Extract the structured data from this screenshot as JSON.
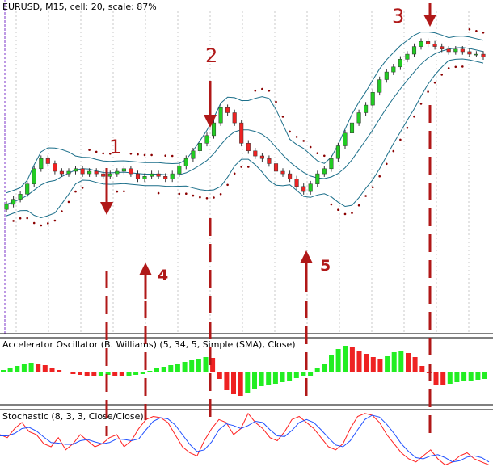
{
  "chart_data": {
    "type": "candlestick",
    "title": "EURUSD, M15, cell: 20, scale: 87%",
    "annotations": [
      {
        "label": "1",
        "kind": "down-arrow"
      },
      {
        "label": "2",
        "kind": "down-arrow"
      },
      {
        "label": "3",
        "kind": "down-arrow"
      },
      {
        "label": "4",
        "kind": "up-arrow"
      },
      {
        "label": "5",
        "kind": "up-arrow"
      }
    ],
    "panels": {
      "price": {
        "series": [
          {
            "name": "candles",
            "values": [
              0.34,
              0.36,
              0.38,
              0.42,
              0.48,
              0.52,
              0.5,
              0.47,
              0.46,
              0.47,
              0.48,
              0.46,
              0.47,
              0.46,
              0.45,
              0.46,
              0.47,
              0.48,
              0.46,
              0.44,
              0.45,
              0.46,
              0.45,
              0.44,
              0.46,
              0.49,
              0.52,
              0.55,
              0.58,
              0.61,
              0.66,
              0.72,
              0.7,
              0.66,
              0.58,
              0.55,
              0.53,
              0.52,
              0.5,
              0.47,
              0.46,
              0.44,
              0.41,
              0.39,
              0.42,
              0.46,
              0.48,
              0.52,
              0.57,
              0.62,
              0.66,
              0.7,
              0.73,
              0.78,
              0.83,
              0.86,
              0.88,
              0.91,
              0.93,
              0.96,
              0.98,
              0.97,
              0.96,
              0.95,
              0.94,
              0.95,
              0.94,
              0.93,
              0.93,
              0.92
            ]
          },
          {
            "name": "bollinger",
            "values": []
          },
          {
            "name": "parabolic-sar",
            "values": []
          }
        ]
      },
      "accelerator": {
        "title": "Accelerator Oscillator (B. Williams) (5, 34, 5, Simple (SMA), Close)",
        "values": [
          0.2,
          0.4,
          0.7,
          0.9,
          1.1,
          1.0,
          0.8,
          0.5,
          0.2,
          -0.1,
          -0.3,
          -0.4,
          -0.5,
          -0.6,
          -0.5,
          -0.4,
          -0.5,
          -0.6,
          -0.5,
          -0.4,
          -0.3,
          0.1,
          0.4,
          0.6,
          0.8,
          1.0,
          1.2,
          1.4,
          1.6,
          1.8,
          1.7,
          -0.9,
          -2.3,
          -2.8,
          -3.0,
          -2.6,
          -2.2,
          -1.8,
          -1.6,
          -1.5,
          -1.3,
          -1.1,
          -0.8,
          -0.6,
          -0.5,
          0.4,
          1.0,
          2.0,
          2.8,
          3.2,
          3.0,
          2.6,
          2.2,
          1.8,
          1.6,
          1.9,
          2.4,
          2.6,
          2.3,
          1.8,
          0.7,
          -0.2,
          -1.6,
          -1.7,
          -1.5,
          -1.3,
          -1.2,
          -1.1,
          -1.0,
          -0.9
        ]
      },
      "stochastic": {
        "title": "Stochastic (8, 3, 3, Close/Close)",
        "series": [
          {
            "name": "main",
            "values": [
              60,
              55,
              70,
              80,
              65,
              60,
              45,
              40,
              55,
              35,
              45,
              60,
              50,
              40,
              45,
              55,
              60,
              40,
              50,
              70,
              85,
              90,
              88,
              80,
              60,
              40,
              30,
              25,
              50,
              70,
              85,
              80,
              60,
              70,
              95,
              80,
              70,
              55,
              50,
              65,
              85,
              90,
              80,
              70,
              55,
              40,
              35,
              45,
              70,
              90,
              95,
              92,
              80,
              60,
              45,
              30,
              20,
              15,
              25,
              35,
              20,
              10,
              15,
              25,
              30,
              20,
              15,
              10
            ]
          },
          {
            "name": "signal",
            "values": [
              58,
              58,
              62,
              70,
              72,
              66,
              56,
              47,
              46,
              44,
              44,
              50,
              52,
              48,
              45,
              47,
              53,
              52,
              50,
              53,
              68,
              82,
              88,
              86,
              76,
              60,
              44,
              32,
              35,
              48,
              68,
              78,
              75,
              70,
              75,
              82,
              80,
              68,
              58,
              57,
              67,
              80,
              85,
              80,
              68,
              55,
              43,
              40,
              50,
              68,
              85,
              92,
              89,
              77,
              62,
              45,
              32,
              22,
              20,
              25,
              27,
              22,
              15,
              17,
              23,
              25,
              22,
              15
            ]
          }
        ]
      }
    }
  }
}
